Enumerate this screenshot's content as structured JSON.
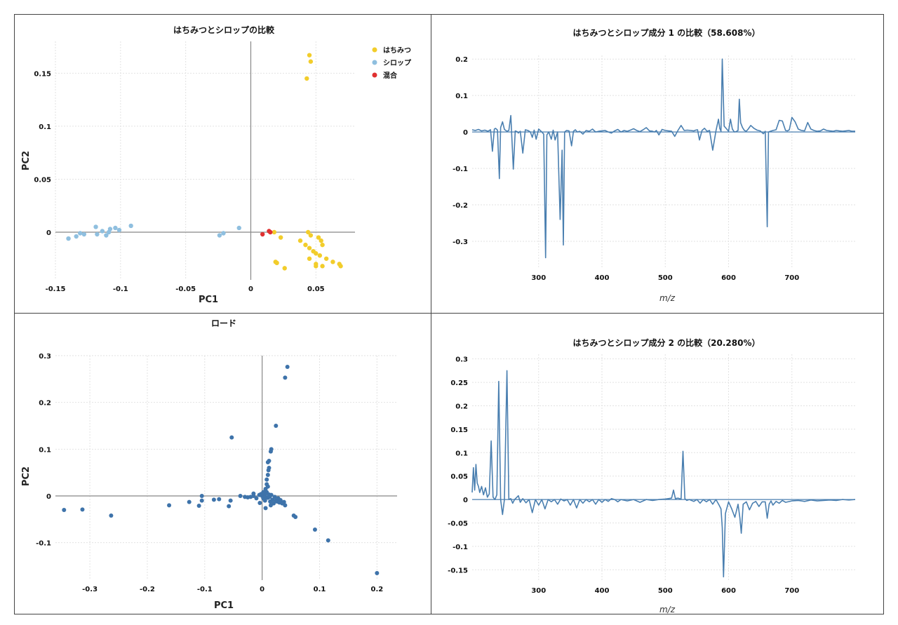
{
  "chart_data": [
    {
      "type": "scatter",
      "title": "はちみつとシロップの比較",
      "xlabel": "PC1",
      "ylabel": "PC2",
      "xlim": [
        -0.15,
        0.08
      ],
      "ylim": [
        -0.045,
        0.18
      ],
      "xticks": [
        -0.15,
        -0.1,
        -0.05,
        0,
        0.05
      ],
      "xtick_labels": [
        "-0.15",
        "-0.1",
        "-0.05",
        "0",
        "0.05"
      ],
      "yticks": [
        0,
        0.05,
        0.1,
        0.15
      ],
      "ytick_labels": [
        "0",
        "0.05",
        "0.1",
        "0.15"
      ],
      "grid": true,
      "legend": "top-right",
      "series": [
        {
          "name": "はちみつ",
          "color": "#f2cd2b",
          "points": [
            [
              0.045,
              0.167
            ],
            [
              0.046,
              0.161
            ],
            [
              0.043,
              0.145
            ],
            [
              0.018,
              0.0
            ],
            [
              0.023,
              -0.005
            ],
            [
              0.044,
              0.0
            ],
            [
              0.046,
              -0.003
            ],
            [
              0.038,
              -0.008
            ],
            [
              0.042,
              -0.012
            ],
            [
              0.045,
              -0.015
            ],
            [
              0.048,
              -0.018
            ],
            [
              0.052,
              -0.005
            ],
            [
              0.054,
              -0.008
            ],
            [
              0.055,
              -0.012
            ],
            [
              0.05,
              -0.02
            ],
            [
              0.053,
              -0.022
            ],
            [
              0.058,
              -0.025
            ],
            [
              0.063,
              -0.028
            ],
            [
              0.068,
              -0.03
            ],
            [
              0.069,
              -0.032
            ],
            [
              0.05,
              -0.03
            ],
            [
              0.05,
              -0.032
            ],
            [
              0.055,
              -0.032
            ],
            [
              0.019,
              -0.028
            ],
            [
              0.02,
              -0.029
            ],
            [
              0.026,
              -0.034
            ],
            [
              0.045,
              -0.025
            ]
          ]
        },
        {
          "name": "シロップ",
          "color": "#8fbfdf",
          "points": [
            [
              -0.14,
              -0.006
            ],
            [
              -0.134,
              -0.004
            ],
            [
              -0.131,
              -0.001
            ],
            [
              -0.128,
              -0.002
            ],
            [
              -0.119,
              0.005
            ],
            [
              -0.118,
              -0.002
            ],
            [
              -0.114,
              0.001
            ],
            [
              -0.111,
              -0.003
            ],
            [
              -0.109,
              0.0
            ],
            [
              -0.108,
              0.003
            ],
            [
              -0.104,
              0.004
            ],
            [
              -0.101,
              0.002
            ],
            [
              -0.092,
              0.006
            ],
            [
              -0.024,
              -0.003
            ],
            [
              -0.021,
              -0.001
            ],
            [
              -0.009,
              0.004
            ]
          ]
        },
        {
          "name": "混合",
          "color": "#e03030",
          "points": [
            [
              0.009,
              -0.002
            ],
            [
              0.014,
              0.001
            ],
            [
              0.015,
              0.0
            ]
          ]
        }
      ]
    },
    {
      "type": "line",
      "title": "はちみつとシロップ成分 1 の比較（58.608%）",
      "xlabel": "m/z",
      "ylabel": "",
      "xlim": [
        195,
        800
      ],
      "ylim": [
        -0.375,
        0.21
      ],
      "xticks": [
        300,
        400,
        500,
        600,
        700
      ],
      "xtick_labels": [
        "300",
        "400",
        "500",
        "600",
        "700"
      ],
      "yticks": [
        -0.3,
        -0.2,
        -0.1,
        0,
        0.1,
        0.2
      ],
      "ytick_labels": [
        "-0.3",
        "-0.2",
        "-0.1",
        "0",
        "0.1",
        "0.2"
      ],
      "grid": true,
      "color": "#4a7fb0",
      "x": [
        195,
        200,
        205,
        210,
        215,
        220,
        222,
        224,
        227,
        230,
        232,
        235,
        238,
        240,
        243,
        246,
        250,
        253,
        256,
        260,
        263,
        266,
        268,
        271,
        275,
        279,
        283,
        287,
        290,
        293,
        296,
        300,
        305,
        308,
        311,
        313,
        316,
        320,
        323,
        326,
        330,
        334,
        337,
        339,
        341,
        344,
        348,
        352,
        355,
        358,
        361,
        365,
        370,
        375,
        380,
        385,
        390,
        395,
        400,
        405,
        410,
        415,
        420,
        425,
        430,
        435,
        440,
        445,
        450,
        455,
        460,
        465,
        470,
        475,
        480,
        483,
        486,
        490,
        495,
        500,
        505,
        510,
        515,
        520,
        525,
        530,
        535,
        540,
        545,
        548,
        551,
        554,
        558,
        562,
        566,
        570,
        575,
        580,
        584,
        586,
        588,
        590,
        593,
        596,
        600,
        603,
        606,
        609,
        612,
        615,
        617,
        619,
        622,
        625,
        628,
        631,
        635,
        640,
        645,
        650,
        655,
        658,
        661,
        663,
        666,
        670,
        675,
        680,
        685,
        690,
        693,
        696,
        700,
        705,
        710,
        715,
        720,
        725,
        730,
        735,
        740,
        745,
        750,
        755,
        760,
        765,
        770,
        775,
        780,
        785,
        790,
        795,
        800
      ],
      "y": [
        0.006,
        0.004,
        0.007,
        0.003,
        0.005,
        0.002,
        0.004,
        0.006,
        -0.053,
        0.008,
        0.01,
        0.005,
        -0.128,
        0.012,
        0.028,
        0.007,
        0.002,
        0.004,
        0.045,
        -0.102,
        0.003,
        0.001,
        -0.003,
        0.002,
        -0.058,
        0.006,
        0.004,
        0.0,
        -0.015,
        0.005,
        -0.02,
        0.008,
        0.0,
        -0.006,
        -0.345,
        -0.008,
        0.0,
        -0.02,
        0.005,
        -0.022,
        0.0,
        -0.24,
        -0.05,
        -0.31,
        0.0,
        0.004,
        0.003,
        -0.038,
        0.002,
        0.006,
        0.0,
        0.002,
        -0.006,
        0.004,
        0.002,
        0.008,
        0.0,
        0.002,
        0.003,
        0.004,
        0.0,
        -0.003,
        0.003,
        0.007,
        0.0,
        0.004,
        0.002,
        0.005,
        0.009,
        0.004,
        0.001,
        0.006,
        0.012,
        0.003,
        0.002,
        0.0,
        0.004,
        -0.008,
        0.007,
        0.004,
        0.003,
        0.002,
        -0.012,
        0.004,
        0.018,
        0.004,
        0.005,
        0.004,
        0.003,
        0.005,
        0.006,
        -0.022,
        0.004,
        0.01,
        0.002,
        0.004,
        -0.05,
        0.003,
        0.035,
        0.01,
        0.002,
        0.2,
        0.016,
        0.01,
        0.002,
        0.035,
        0.008,
        0.0,
        0.001,
        0.004,
        0.09,
        0.025,
        0.012,
        0.004,
        0.002,
        0.008,
        0.018,
        0.01,
        0.005,
        0.003,
        -0.005,
        0.002,
        -0.26,
        0.0,
        0.002,
        0.004,
        0.006,
        0.032,
        0.03,
        0.004,
        0.003,
        0.006,
        0.04,
        0.028,
        0.008,
        0.004,
        0.003,
        0.026,
        0.008,
        0.004,
        0.002,
        0.003,
        0.008,
        0.004,
        0.003,
        0.002,
        0.004,
        0.003,
        0.002,
        0.003,
        0.004,
        0.002,
        0.002
      ]
    },
    {
      "type": "scatter",
      "title": "ロード",
      "xlabel": "PC1",
      "ylabel": "PC2",
      "xlim": [
        -0.36,
        0.235
      ],
      "ylim": [
        -0.18,
        0.3
      ],
      "xticks": [
        -0.3,
        -0.2,
        -0.1,
        0,
        0.1,
        0.2
      ],
      "xtick_labels": [
        "-0.3",
        "-0.2",
        "-0.1",
        "0",
        "0.1",
        "0.2"
      ],
      "yticks": [
        -0.1,
        0,
        0.1,
        0.2,
        0.3
      ],
      "ytick_labels": [
        "-0.1",
        "0",
        "0.1",
        "0.2",
        "0.3"
      ],
      "grid": true,
      "color": "#3e73aa",
      "points": [
        [
          -0.345,
          -0.03
        ],
        [
          -0.313,
          -0.029
        ],
        [
          -0.263,
          -0.042
        ],
        [
          -0.162,
          -0.02
        ],
        [
          -0.127,
          -0.013
        ],
        [
          -0.11,
          -0.021
        ],
        [
          -0.105,
          -0.01
        ],
        [
          -0.105,
          0.0
        ],
        [
          -0.084,
          -0.008
        ],
        [
          -0.075,
          -0.007
        ],
        [
          -0.058,
          -0.022
        ],
        [
          -0.055,
          -0.01
        ],
        [
          -0.053,
          0.125
        ],
        [
          -0.038,
          0.0
        ],
        [
          -0.03,
          -0.002
        ],
        [
          -0.025,
          -0.003
        ],
        [
          -0.02,
          -0.002
        ],
        [
          -0.015,
          0.0
        ],
        [
          -0.01,
          -0.005
        ],
        [
          -0.005,
          0.002
        ],
        [
          -0.004,
          -0.015
        ],
        [
          0.0,
          0.0
        ],
        [
          0.002,
          -0.005
        ],
        [
          0.004,
          0.005
        ],
        [
          0.005,
          -0.01
        ],
        [
          0.006,
          -0.026
        ],
        [
          0.008,
          0.008
        ],
        [
          0.01,
          -0.004
        ],
        [
          0.01,
          0.02
        ],
        [
          0.012,
          0.003
        ],
        [
          0.014,
          -0.012
        ],
        [
          0.015,
          -0.02
        ],
        [
          0.016,
          0.002
        ],
        [
          0.018,
          -0.008
        ],
        [
          0.02,
          -0.016
        ],
        [
          0.022,
          -0.002
        ],
        [
          0.024,
          -0.01
        ],
        [
          0.026,
          -0.012
        ],
        [
          0.028,
          -0.005
        ],
        [
          0.03,
          -0.014
        ],
        [
          0.032,
          -0.009
        ],
        [
          0.035,
          -0.016
        ],
        [
          0.038,
          -0.013
        ],
        [
          0.04,
          -0.02
        ],
        [
          0.003,
          0.005
        ],
        [
          0.005,
          0.01
        ],
        [
          0.006,
          0.015
        ],
        [
          0.008,
          0.025
        ],
        [
          0.008,
          0.035
        ],
        [
          0.01,
          0.045
        ],
        [
          0.011,
          0.055
        ],
        [
          0.012,
          0.06
        ],
        [
          0.01,
          0.072
        ],
        [
          0.012,
          0.075
        ],
        [
          0.015,
          0.095
        ],
        [
          0.016,
          0.1
        ],
        [
          0.024,
          0.15
        ],
        [
          0.04,
          0.253
        ],
        [
          0.044,
          0.276
        ],
        [
          0.055,
          -0.042
        ],
        [
          0.058,
          -0.045
        ],
        [
          0.092,
          -0.072
        ],
        [
          0.115,
          -0.095
        ],
        [
          0.2,
          -0.165
        ],
        [
          -0.015,
          0.005
        ],
        [
          0.005,
          0.003
        ],
        [
          0.007,
          -0.003
        ],
        [
          0.002,
          0.008
        ],
        [
          -0.002,
          0.004
        ],
        [
          0.013,
          -0.002
        ]
      ]
    },
    {
      "type": "line",
      "title": "はちみつとシロップ成分 2 の比較（20.280%）",
      "xlabel": "m/z",
      "ylabel": "",
      "xlim": [
        195,
        800
      ],
      "ylim": [
        -0.175,
        0.31
      ],
      "xticks": [
        300,
        400,
        500,
        600,
        700
      ],
      "xtick_labels": [
        "300",
        "400",
        "500",
        "600",
        "700"
      ],
      "yticks": [
        -0.15,
        -0.1,
        -0.05,
        0,
        0.05,
        0.1,
        0.15,
        0.2,
        0.25,
        0.3
      ],
      "ytick_labels": [
        "-0.15",
        "-0.1",
        "-0.05",
        "0",
        "0.05",
        "0.1",
        "0.15",
        "0.2",
        "0.25",
        "0.3"
      ],
      "grid": true,
      "color": "#4a7fb0",
      "x": [
        195,
        197,
        199,
        201,
        203,
        205,
        207,
        210,
        213,
        216,
        219,
        222,
        225,
        228,
        231,
        234,
        237,
        240,
        243,
        246,
        250,
        253,
        256,
        259,
        262,
        265,
        268,
        271,
        275,
        280,
        285,
        290,
        295,
        300,
        305,
        310,
        315,
        320,
        325,
        330,
        335,
        340,
        345,
        350,
        355,
        360,
        365,
        370,
        375,
        380,
        385,
        390,
        395,
        400,
        405,
        410,
        415,
        420,
        425,
        430,
        440,
        450,
        460,
        470,
        480,
        490,
        500,
        505,
        510,
        513,
        516,
        520,
        525,
        528,
        531,
        534,
        538,
        545,
        550,
        555,
        560,
        565,
        570,
        575,
        580,
        585,
        588,
        590,
        592,
        595,
        600,
        605,
        610,
        615,
        618,
        620,
        623,
        628,
        633,
        638,
        643,
        648,
        653,
        658,
        661,
        664,
        667,
        670,
        675,
        680,
        685,
        690,
        700,
        710,
        720,
        730,
        740,
        750,
        760,
        770,
        780,
        790,
        800
      ],
      "y": [
        0.015,
        0.068,
        0.02,
        0.075,
        0.035,
        0.028,
        0.015,
        0.028,
        0.01,
        0.025,
        0.005,
        0.012,
        0.125,
        0.005,
        0.0,
        0.01,
        0.252,
        0.0,
        -0.032,
        0.0,
        0.275,
        0.0,
        0.002,
        -0.008,
        0.0,
        0.004,
        0.008,
        -0.006,
        0.002,
        -0.007,
        0.0,
        -0.028,
        0.0,
        -0.012,
        0.0,
        -0.02,
        0.0,
        -0.005,
        0.0,
        -0.01,
        0.001,
        -0.003,
        0.0,
        -0.012,
        0.0,
        -0.018,
        0.0,
        -0.008,
        0.0,
        -0.005,
        0.0,
        -0.01,
        0.0,
        -0.006,
        0.0,
        -0.004,
        0.002,
        0.0,
        -0.005,
        0.0,
        -0.003,
        0.0,
        -0.006,
        0.0,
        -0.002,
        0.0,
        0.001,
        0.002,
        0.003,
        0.02,
        0.002,
        0.003,
        0.001,
        0.103,
        0.002,
        -0.002,
        0.0,
        -0.004,
        0.0,
        -0.008,
        0.0,
        -0.005,
        0.0,
        -0.01,
        0.0,
        -0.012,
        -0.02,
        -0.06,
        -0.165,
        -0.03,
        -0.005,
        -0.02,
        -0.038,
        -0.01,
        -0.04,
        -0.072,
        -0.01,
        -0.005,
        -0.022,
        -0.008,
        -0.004,
        -0.015,
        -0.005,
        -0.005,
        -0.04,
        -0.01,
        -0.003,
        -0.012,
        -0.004,
        -0.008,
        -0.002,
        -0.006,
        -0.003,
        -0.002,
        -0.004,
        -0.001,
        -0.003,
        -0.002,
        -0.001,
        -0.002,
        0.0,
        -0.001,
        0.0
      ]
    }
  ],
  "legend_items": [
    {
      "label": "はちみつ",
      "color": "#f2cd2b"
    },
    {
      "label": "シロップ",
      "color": "#8fbfdf"
    },
    {
      "label": "混合",
      "color": "#e03030"
    }
  ]
}
